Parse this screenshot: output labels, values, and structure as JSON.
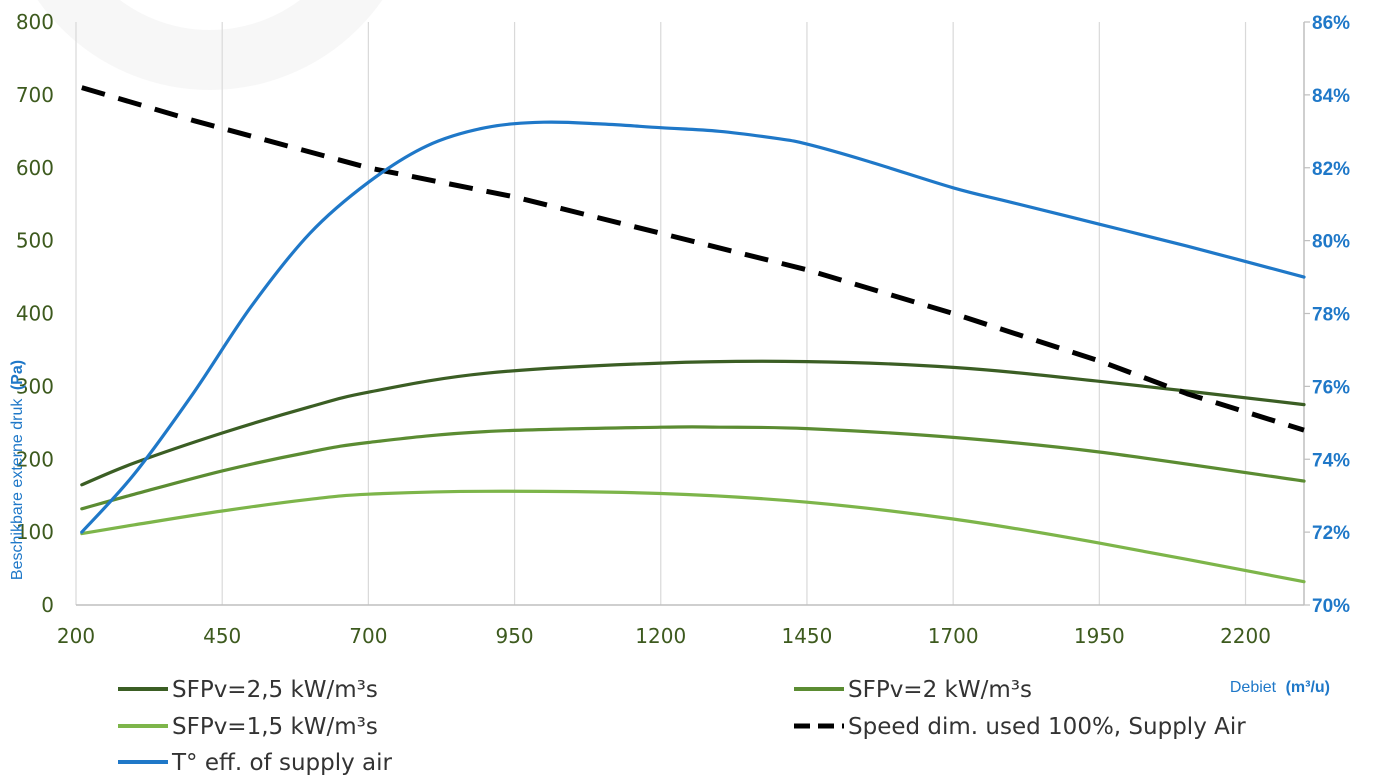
{
  "chart_data": {
    "type": "line",
    "xlabel": "Debiet",
    "xlabel_unit": "(m³/u)",
    "ylabel": "Beschikbare externe druk",
    "ylabel_unit": "(Pa)",
    "x_ticks": [
      "200",
      "450",
      "700",
      "950",
      "1200",
      "1450",
      "1700",
      "1950",
      "2200"
    ],
    "xlim": [
      200,
      2300
    ],
    "ylim_left": [
      0,
      800
    ],
    "y_ticks_left": [
      "0",
      "100",
      "200",
      "300",
      "400",
      "500",
      "600",
      "700",
      "800"
    ],
    "ylim_right": [
      70,
      86
    ],
    "y_ticks_right": [
      "70%",
      "72%",
      "74%",
      "76%",
      "78%",
      "80%",
      "82%",
      "84%",
      "86%"
    ],
    "grid": "vertical",
    "legend_position": "bottom",
    "series": [
      {
        "name": "SFPv=2,5 kW/m³s",
        "axis": "left",
        "color": "#3b5e24",
        "style": "solid",
        "x": [
          210,
          300,
          450,
          600,
          700,
          900,
          1200,
          1450,
          1700,
          1950,
          2300
        ],
        "y": [
          165,
          195,
          236,
          272,
          292,
          318,
          332,
          334,
          326,
          307,
          275
        ]
      },
      {
        "name": "SFPv=2 kW/m³s",
        "axis": "left",
        "color": "#5b8c32",
        "style": "solid",
        "x": [
          210,
          300,
          450,
          600,
          700,
          900,
          1200,
          1300,
          1450,
          1700,
          1950,
          2300
        ],
        "y": [
          132,
          152,
          184,
          210,
          223,
          238,
          244,
          244,
          242,
          230,
          210,
          170
        ]
      },
      {
        "name": "SFPv=1,5 kW/m³s",
        "axis": "left",
        "color": "#7db54a",
        "style": "solid",
        "x": [
          210,
          300,
          450,
          600,
          700,
          900,
          1200,
          1450,
          1700,
          1950,
          2300
        ],
        "y": [
          98,
          110,
          129,
          145,
          152,
          156,
          153,
          141,
          118,
          85,
          32
        ]
      },
      {
        "name": "Speed dim. used 100%, Supply Air",
        "axis": "right",
        "color": "#000000",
        "style": "dashed",
        "x": [
          210,
          400,
          700,
          950,
          1200,
          1450,
          1700,
          1950,
          2100,
          2300
        ],
        "y": [
          84.2,
          83.3,
          82.0,
          81.2,
          80.2,
          79.2,
          78.0,
          76.7,
          75.8,
          74.8
        ]
      },
      {
        "name": "T° eff. of supply air",
        "axis": "right",
        "color": "#1f78c8",
        "style": "solid",
        "x": [
          210,
          300,
          400,
          500,
          600,
          700,
          800,
          900,
          1000,
          1100,
          1200,
          1300,
          1400,
          1450,
          1550,
          1700,
          1800,
          1950,
          2100,
          2300
        ],
        "y": [
          72.0,
          73.6,
          75.8,
          78.2,
          80.2,
          81.6,
          82.6,
          83.1,
          83.25,
          83.2,
          83.1,
          83.0,
          82.8,
          82.65,
          82.2,
          81.45,
          81.05,
          80.45,
          79.85,
          79.0
        ]
      }
    ]
  }
}
